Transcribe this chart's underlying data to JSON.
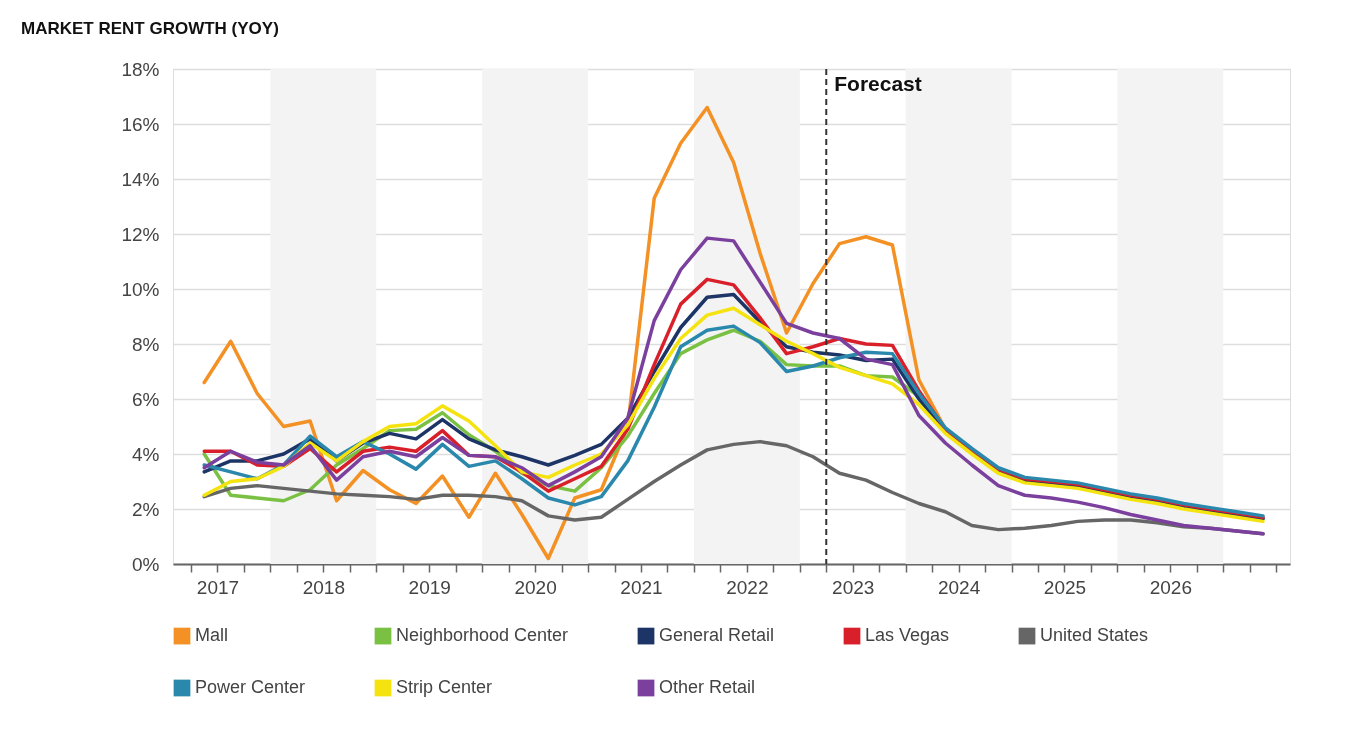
{
  "chart_data": {
    "type": "line",
    "title": "MARKET RENT GROWTH (YOY)",
    "x": [
      2017.375,
      2017.625,
      2017.875,
      2018.125,
      2018.375,
      2018.625,
      2018.875,
      2019.125,
      2019.375,
      2019.625,
      2019.875,
      2020.125,
      2020.375,
      2020.625,
      2020.875,
      2021.125,
      2021.375,
      2021.625,
      2021.875,
      2022.125,
      2022.375,
      2022.625,
      2022.875,
      2023.125,
      2023.375,
      2023.625,
      2023.875,
      2024.125,
      2024.375,
      2024.625,
      2024.875,
      2025.125,
      2025.375,
      2025.625,
      2025.875,
      2026.125,
      2026.375,
      2026.625,
      2026.875,
      2027.125,
      2027.375
    ],
    "xlim": [
      2017.08,
      2027.63
    ],
    "xticks": [
      {
        "value": 2017.25,
        "label": null
      },
      {
        "value": 2017.5,
        "label": "2017"
      },
      {
        "value": 2017.75,
        "label": null
      },
      {
        "value": 2018,
        "label": null
      },
      {
        "value": 2018.25,
        "label": null
      },
      {
        "value": 2018.5,
        "label": "2018"
      },
      {
        "value": 2018.75,
        "label": null
      },
      {
        "value": 2019,
        "label": null
      },
      {
        "value": 2019.25,
        "label": null
      },
      {
        "value": 2019.5,
        "label": "2019"
      },
      {
        "value": 2019.75,
        "label": null
      },
      {
        "value": 2020,
        "label": null
      },
      {
        "value": 2020.25,
        "label": null
      },
      {
        "value": 2020.5,
        "label": "2020"
      },
      {
        "value": 2020.75,
        "label": null
      },
      {
        "value": 2021,
        "label": null
      },
      {
        "value": 2021.25,
        "label": null
      },
      {
        "value": 2021.5,
        "label": "2021"
      },
      {
        "value": 2021.75,
        "label": null
      },
      {
        "value": 2022,
        "label": null
      },
      {
        "value": 2022.25,
        "label": null
      },
      {
        "value": 2022.5,
        "label": "2022"
      },
      {
        "value": 2022.75,
        "label": null
      },
      {
        "value": 2023,
        "label": null
      },
      {
        "value": 2023.25,
        "label": null
      },
      {
        "value": 2023.5,
        "label": "2023"
      },
      {
        "value": 2023.75,
        "label": null
      },
      {
        "value": 2024,
        "label": null
      },
      {
        "value": 2024.25,
        "label": null
      },
      {
        "value": 2024.5,
        "label": "2024"
      },
      {
        "value": 2024.75,
        "label": null
      },
      {
        "value": 2025,
        "label": null
      },
      {
        "value": 2025.25,
        "label": null
      },
      {
        "value": 2025.5,
        "label": "2025"
      },
      {
        "value": 2025.75,
        "label": null
      },
      {
        "value": 2026,
        "label": null
      },
      {
        "value": 2026.25,
        "label": null
      },
      {
        "value": 2026.5,
        "label": "2026"
      },
      {
        "value": 2026.75,
        "label": null
      },
      {
        "value": 2027,
        "label": null
      },
      {
        "value": 2027.25,
        "label": null
      },
      {
        "value": 2027.5,
        "label": null
      }
    ],
    "ylim": [
      0,
      18
    ],
    "yticks": [
      {
        "value": 0,
        "label": "0%"
      },
      {
        "value": 2,
        "label": "2%"
      },
      {
        "value": 4,
        "label": "4%"
      },
      {
        "value": 6,
        "label": "6%"
      },
      {
        "value": 8,
        "label": "8%"
      },
      {
        "value": 10,
        "label": "10%"
      },
      {
        "value": 12,
        "label": "12%"
      },
      {
        "value": 14,
        "label": "14%"
      },
      {
        "value": 16,
        "label": "16%"
      },
      {
        "value": 18,
        "label": "18%"
      }
    ],
    "grid": "y",
    "legend": "bottom",
    "marker": "none",
    "line_style": "solid",
    "bands": [
      {
        "axis": "x",
        "from": 2018,
        "to": 2019,
        "color": "#f3f3f3"
      },
      {
        "axis": "x",
        "from": 2020,
        "to": 2021,
        "color": "#f3f3f3"
      },
      {
        "axis": "x",
        "from": 2022,
        "to": 2023,
        "color": "#f3f3f3"
      },
      {
        "axis": "x",
        "from": 2024,
        "to": 2025,
        "color": "#f3f3f3"
      },
      {
        "axis": "x",
        "from": 2026,
        "to": 2027,
        "color": "#f3f3f3"
      }
    ],
    "ref_lines": [
      {
        "axis": "x",
        "value": 2023.25,
        "label": "Forecast",
        "color": "#333333",
        "line_style": "dashed"
      }
    ],
    "series": [
      {
        "name": "Mall",
        "color": "#f39125",
        "values": [
          6.6,
          8.1,
          6.2,
          5.0,
          5.2,
          2.3,
          3.4,
          2.7,
          2.2,
          3.2,
          1.7,
          3.3,
          1.8,
          0.2,
          2.4,
          2.7,
          5.0,
          13.3,
          15.3,
          16.6,
          14.6,
          11.3,
          8.4,
          10.2,
          11.65,
          11.9,
          11.6,
          6.7,
          4.9,
          4.05,
          3.35,
          3.0,
          null,
          null,
          null,
          null,
          null,
          null,
          null,
          null,
          null
        ]
      },
      {
        "name": "Neighborhood Center",
        "color": "#7ac143",
        "values": [
          4.0,
          2.5,
          2.4,
          2.3,
          2.7,
          3.6,
          4.2,
          4.85,
          4.9,
          5.5,
          4.7,
          4.1,
          3.3,
          2.85,
          2.65,
          3.5,
          4.65,
          6.2,
          7.65,
          8.15,
          8.5,
          8.1,
          7.25,
          7.2,
          7.2,
          6.85,
          6.8,
          6.1,
          4.8,
          4.1,
          3.4,
          3.05,
          2.95,
          2.85,
          2.65,
          2.45,
          2.3,
          2.1,
          1.95,
          1.8,
          1.65
        ]
      },
      {
        "name": "General Retail",
        "color": "#1d3466",
        "values": [
          3.35,
          3.75,
          3.75,
          4.0,
          4.55,
          3.75,
          4.4,
          4.75,
          4.55,
          5.25,
          4.55,
          4.15,
          3.9,
          3.6,
          3.95,
          4.35,
          5.3,
          7.0,
          8.6,
          9.7,
          9.8,
          8.8,
          7.9,
          7.7,
          7.6,
          7.4,
          7.45,
          6.0,
          4.8,
          4.1,
          3.4,
          3.05,
          2.95,
          2.85,
          2.65,
          2.45,
          2.3,
          2.1,
          1.95,
          1.8,
          1.65
        ]
      },
      {
        "name": "Las Vegas",
        "color": "#d9202a",
        "values": [
          4.1,
          4.1,
          3.6,
          3.55,
          4.2,
          3.35,
          4.1,
          4.25,
          4.1,
          4.85,
          3.95,
          3.9,
          3.35,
          2.65,
          3.1,
          3.55,
          4.9,
          7.25,
          9.45,
          10.35,
          10.15,
          8.95,
          7.65,
          7.9,
          8.2,
          8.0,
          7.95,
          6.3,
          4.9,
          4.15,
          3.45,
          3.1,
          3.0,
          2.9,
          2.7,
          2.5,
          2.35,
          2.15,
          2.0,
          1.85,
          1.7
        ]
      },
      {
        "name": "United States",
        "color": "#666666",
        "values": [
          2.45,
          2.75,
          2.85,
          2.75,
          2.65,
          2.55,
          2.5,
          2.45,
          2.35,
          2.5,
          2.5,
          2.45,
          2.3,
          1.75,
          1.6,
          1.7,
          2.35,
          3.0,
          3.6,
          4.15,
          4.35,
          4.45,
          4.3,
          3.9,
          3.3,
          3.05,
          2.6,
          2.2,
          1.9,
          1.4,
          1.25,
          1.3,
          1.4,
          1.55,
          1.6,
          1.6,
          1.5,
          1.35,
          1.3,
          1.2,
          1.1
        ]
      },
      {
        "name": "Power Center",
        "color": "#2a88ad",
        "values": [
          3.6,
          3.35,
          3.1,
          3.6,
          4.65,
          3.9,
          4.45,
          4.0,
          3.45,
          4.35,
          3.55,
          3.75,
          3.1,
          2.4,
          2.15,
          2.45,
          3.75,
          5.7,
          7.9,
          8.5,
          8.65,
          8.05,
          7.0,
          7.2,
          7.5,
          7.7,
          7.65,
          6.2,
          4.95,
          4.2,
          3.5,
          3.15,
          3.05,
          2.95,
          2.75,
          2.55,
          2.4,
          2.2,
          2.05,
          1.9,
          1.75
        ]
      },
      {
        "name": "Strip Center",
        "color": "#f5e30f",
        "values": [
          2.5,
          3.0,
          3.1,
          3.55,
          4.4,
          3.75,
          4.45,
          5.0,
          5.1,
          5.75,
          5.2,
          4.3,
          3.35,
          3.15,
          3.6,
          4.0,
          5.05,
          6.75,
          8.2,
          9.05,
          9.3,
          8.7,
          8.1,
          7.65,
          7.15,
          6.85,
          6.55,
          5.8,
          4.75,
          4.0,
          3.3,
          2.95,
          2.85,
          2.75,
          2.55,
          2.35,
          2.2,
          2.0,
          1.85,
          1.7,
          1.55
        ]
      },
      {
        "name": "Other Retail",
        "color": "#7b3f9e",
        "values": [
          3.5,
          4.1,
          3.7,
          3.6,
          4.3,
          3.05,
          3.9,
          4.1,
          3.9,
          4.6,
          3.95,
          3.9,
          3.5,
          2.85,
          3.35,
          3.9,
          5.3,
          8.85,
          10.7,
          11.85,
          11.75,
          10.25,
          8.75,
          8.4,
          8.2,
          7.45,
          7.25,
          5.4,
          4.4,
          3.6,
          2.85,
          2.5,
          2.4,
          2.25,
          2.05,
          1.8,
          1.6,
          1.4,
          1.3,
          1.2,
          1.1
        ]
      }
    ]
  }
}
